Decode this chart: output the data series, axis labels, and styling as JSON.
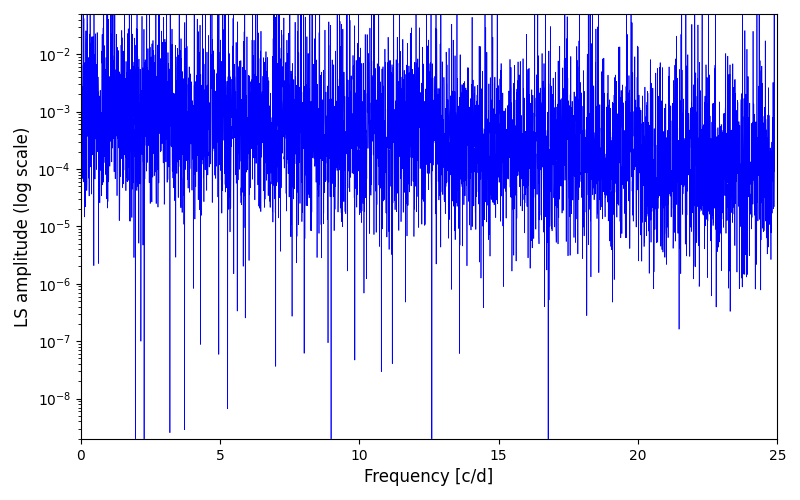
{
  "xlabel": "Frequency [c/d]",
  "ylabel": "LS amplitude (log scale)",
  "line_color": "#0000ff",
  "xlim": [
    0,
    25
  ],
  "ylim_log": [
    -8.7,
    -1.3
  ],
  "n_points": 5000,
  "seed": 7,
  "background_color": "#ffffff",
  "linewidth": 0.5,
  "figsize": [
    8.0,
    5.0
  ],
  "dpi": 100
}
